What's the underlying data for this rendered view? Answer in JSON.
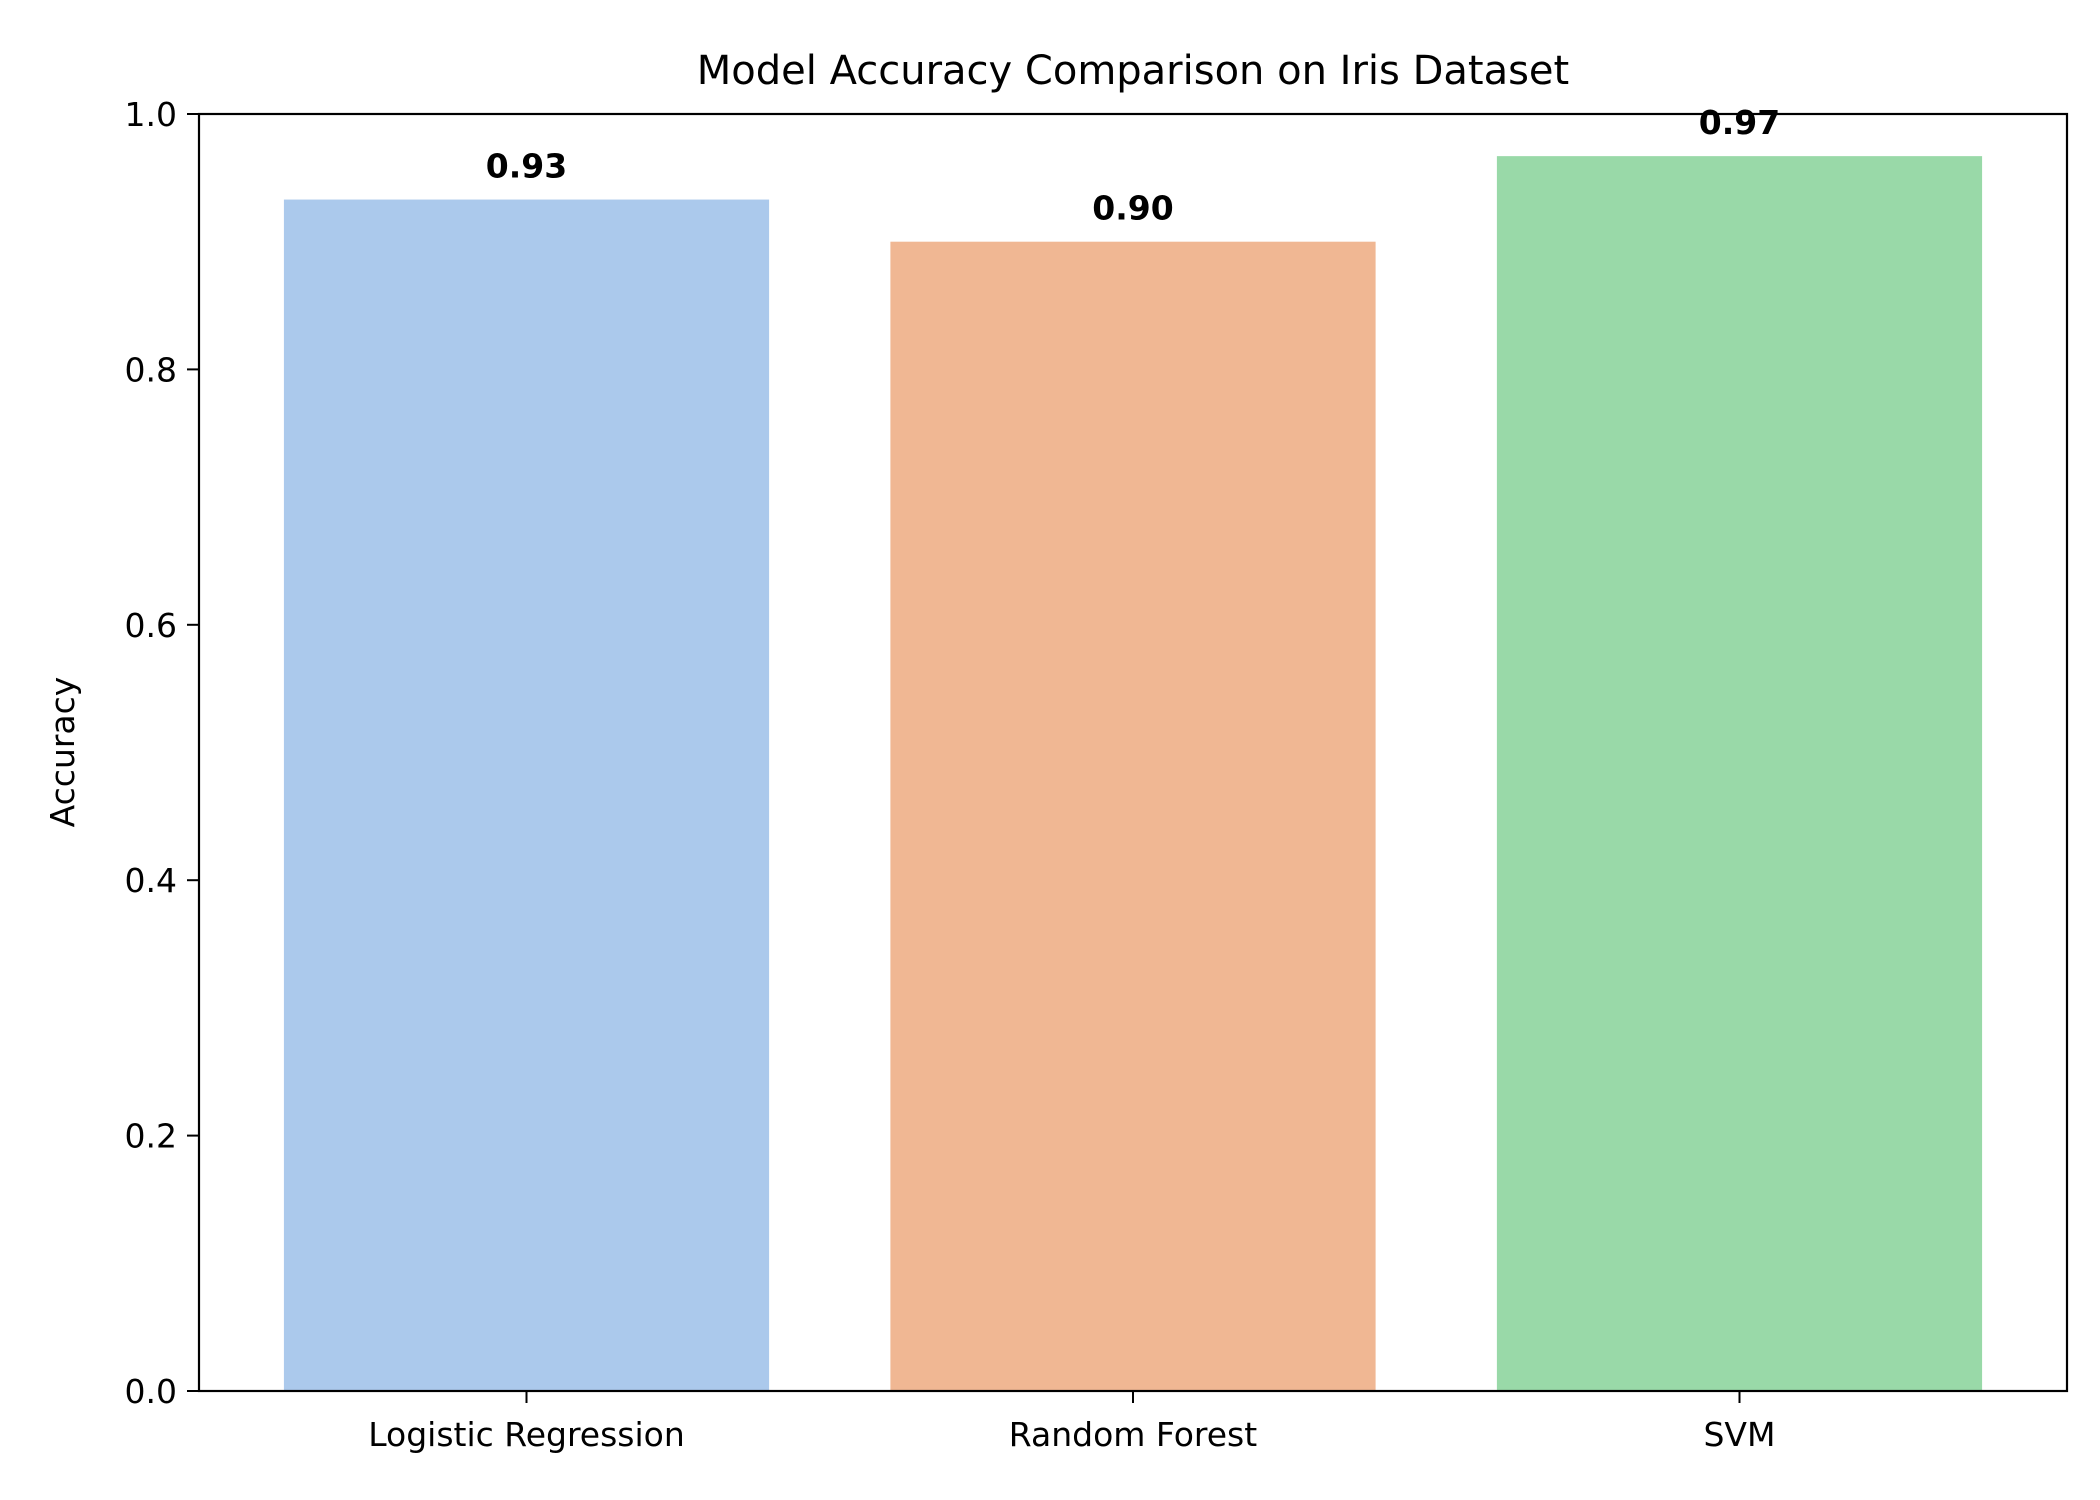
{
  "chart_data": {
    "type": "bar",
    "title": "Model Accuracy Comparison on Iris Dataset",
    "xlabel": "",
    "ylabel": "Accuracy",
    "categories": [
      "Logistic Regression",
      "Random Forest",
      "SVM"
    ],
    "values": [
      0.933,
      0.9,
      0.967
    ],
    "data_labels": [
      "0.93",
      "0.90",
      "0.97"
    ],
    "colors": [
      "#abc9ec",
      "#f0b793",
      "#99d9a8"
    ],
    "ylim": [
      0,
      1.0
    ],
    "yticks": [
      0.0,
      0.2,
      0.4,
      0.6,
      0.8,
      1.0
    ],
    "ytick_labels": [
      "0.0",
      "0.2",
      "0.4",
      "0.6",
      "0.8",
      "1.0"
    ],
    "grid": false,
    "legend": "none"
  }
}
